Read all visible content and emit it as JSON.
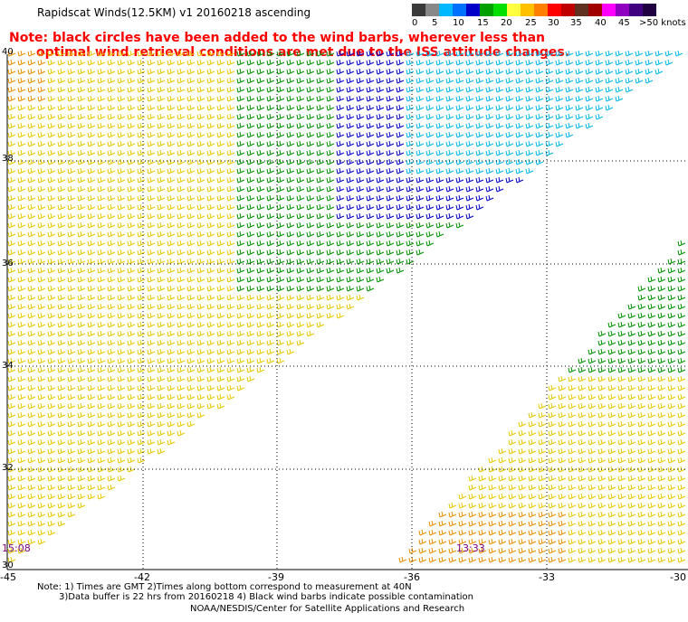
{
  "title": "Rapidscat Winds(12.5KM) v1 20160218 ascending",
  "note_line1": "Note: black circles have been added to the wind barbs, wherever less than",
  "note_line2": "optimal wind retrieval conditions are met due to the ISS attitude changes.",
  "legend": {
    "colors": [
      "#3a3a3a",
      "#888888",
      "#00b8ff",
      "#0070ff",
      "#0000c8",
      "#00a000",
      "#00e000",
      "#ffff40",
      "#ffc000",
      "#ff8000",
      "#ff0000",
      "#c00000",
      "#603020",
      "#a00000",
      "#ff00ff",
      "#9000c0",
      "#400080",
      "#200040"
    ],
    "labels": [
      "0",
      "5",
      "10",
      "15",
      "20",
      "25",
      "30",
      "35",
      "40",
      "45",
      ">50 knots"
    ]
  },
  "axes": {
    "x_ticks": [
      "-45",
      "-42",
      "-39",
      "-36",
      "-33",
      "-30"
    ],
    "y_ticks": [
      "40",
      "38",
      "36",
      "34",
      "32",
      "30"
    ]
  },
  "pass_times": [
    "15:08",
    "13:33"
  ],
  "footer": {
    "line1": "Note: 1) Times are GMT 2)Times along bottom correspond to measurement at 40N",
    "line2": "3)Data buffer is 22 hrs from 20160218 4) Black wind barbs indicate possible contamination",
    "line3": "NOAA/NESDIS/Center for Satellite Applications and Research"
  },
  "colors": {
    "note": "#ff0000",
    "time_label": "#7a007a",
    "barb_yellow": "#e8c800",
    "barb_orange": "#e89000",
    "barb_green": "#009000",
    "barb_blue": "#0000c8",
    "barb_cyan": "#00b8e8"
  }
}
